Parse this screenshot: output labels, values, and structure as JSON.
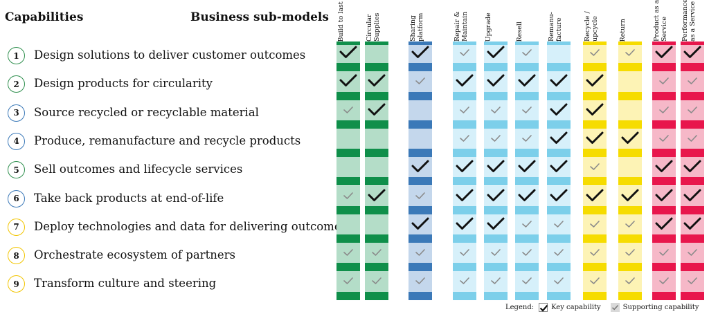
{
  "headings": {
    "capabilities": "Capabilities",
    "business_sub_models": "Business sub-models"
  },
  "capabilities": [
    {
      "number": "1",
      "label": "Design solutions to deliver customer outcomes",
      "circle_color": "#2f8f4e"
    },
    {
      "number": "2",
      "label": "Design products for circularity",
      "circle_color": "#2f8f4e"
    },
    {
      "number": "3",
      "label": "Source recycled or recyclable material",
      "circle_color": "#3b79b8"
    },
    {
      "number": "4",
      "label": "Produce, remanufacture and recycle products",
      "circle_color": "#3b79b8"
    },
    {
      "number": "5",
      "label": "Sell outcomes and lifecycle services",
      "circle_color": "#2f8f4e"
    },
    {
      "number": "6",
      "label": "Take back products at end-of-life",
      "circle_color": "#3b79b8"
    },
    {
      "number": "7",
      "label": "Deploy technologies and data for delivering outcomes",
      "circle_color": "#f2c500"
    },
    {
      "number": "8",
      "label": "Orchestrate ecosystem of partners",
      "circle_color": "#f2c500"
    },
    {
      "number": "9",
      "label": "Transform culture and steering",
      "circle_color": "#f2c500"
    }
  ],
  "legend": {
    "title": "Legend:",
    "key": "Key capability",
    "supporting": "Supporting capability"
  },
  "chart_data": {
    "type": "table",
    "title": "",
    "encoding": {
      "K": "Key capability",
      "S": "Supporting capability",
      "": "none"
    },
    "rows": [
      "Design solutions to deliver customer outcomes",
      "Design products for circularity",
      "Source recycled or recyclable material",
      "Produce, remanufacture and recycle products",
      "Sell outcomes and lifecycle services",
      "Take back products at end-of-life",
      "Deploy technologies and data for delivering outcomes",
      "Orchestrate ecosystem of partners",
      "Transform culture and steering"
    ],
    "columns": [
      {
        "name": "Build to last",
        "light": "#b4ddc8",
        "dark": "#0f8f4a",
        "values": [
          "K",
          "K",
          "S",
          "",
          "",
          "S",
          "",
          "S",
          "S"
        ]
      },
      {
        "name": "Circular\nSupplies",
        "light": "#b4ddc8",
        "dark": "#0f8f4a",
        "values": [
          "",
          "K",
          "K",
          "",
          "",
          "K",
          "",
          "S",
          "S"
        ]
      },
      {
        "name": "Sharing\nplatform",
        "light": "#c4d7ec",
        "dark": "#3b79b8",
        "values": [
          "K",
          "S",
          "",
          "",
          "K",
          "S",
          "K",
          "S",
          "S"
        ]
      },
      {
        "name": "Repair &\nMaintain",
        "light": "#d6f0fa",
        "dark": "#7ccfea",
        "values": [
          "S",
          "K",
          "S",
          "S",
          "K",
          "K",
          "K",
          "S",
          "S"
        ]
      },
      {
        "name": "Upgrade",
        "light": "#d6f0fa",
        "dark": "#7ccfea",
        "values": [
          "K",
          "K",
          "S",
          "S",
          "K",
          "K",
          "K",
          "S",
          "S"
        ]
      },
      {
        "name": "Resell",
        "light": "#d6f0fa",
        "dark": "#7ccfea",
        "values": [
          "S",
          "K",
          "S",
          "S",
          "K",
          "K",
          "S",
          "S",
          "S"
        ]
      },
      {
        "name": "Remanu-\nfacture",
        "light": "#d6f0fa",
        "dark": "#7ccfea",
        "values": [
          "",
          "K",
          "K",
          "K",
          "K",
          "K",
          "S",
          "S",
          "S"
        ]
      },
      {
        "name": "Recycle /\nupcycle",
        "light": "#fdf3b5",
        "dark": "#f6dc00",
        "values": [
          "S",
          "K",
          "K",
          "K",
          "S",
          "K",
          "S",
          "S",
          "S"
        ]
      },
      {
        "name": "Return",
        "light": "#fdf3b5",
        "dark": "#f6dc00",
        "values": [
          "S",
          "",
          "",
          "K",
          "",
          "K",
          "S",
          "S",
          "S"
        ]
      },
      {
        "name": "Product as a\nService",
        "light": "#f6b8c8",
        "dark": "#e8164c",
        "values": [
          "K",
          "S",
          "S",
          "S",
          "K",
          "K",
          "K",
          "S",
          "S"
        ]
      },
      {
        "name": "Performance\nas a Service",
        "light": "#f6b8c8",
        "dark": "#e8164c",
        "values": [
          "K",
          "S",
          "S",
          "S",
          "K",
          "K",
          "K",
          "S",
          "S"
        ]
      }
    ]
  }
}
